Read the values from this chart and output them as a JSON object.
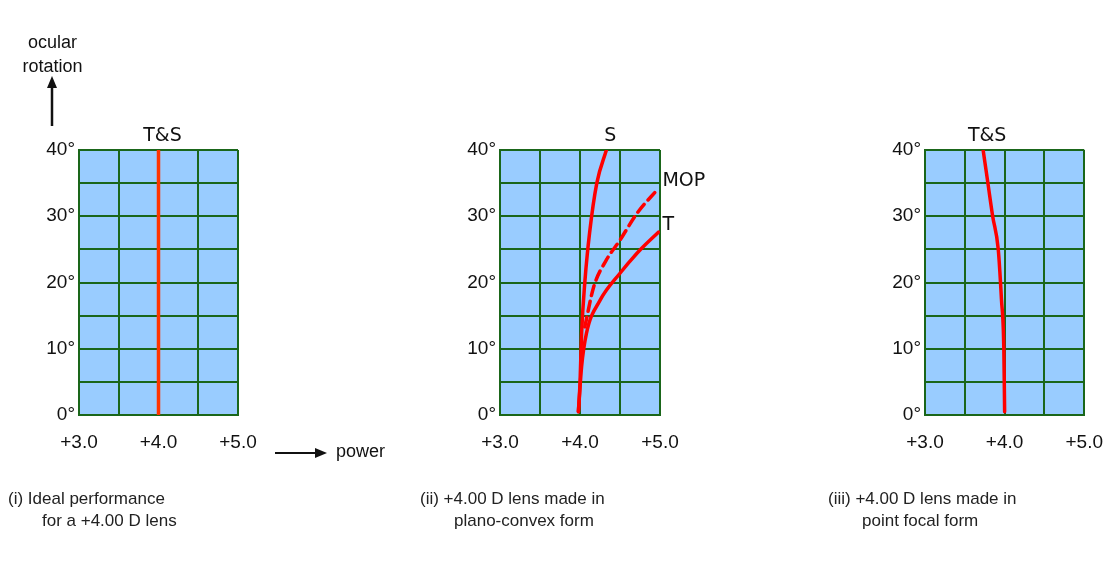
{
  "chart_data": [
    {
      "type": "line",
      "xlabel": "power",
      "ylabel": "ocular rotation",
      "xlim": [
        3,
        5
      ],
      "ylim": [
        0,
        40
      ],
      "xticks": [
        {
          "value": 3,
          "label": "+3.0"
        },
        {
          "value": 3.5,
          "label": null
        },
        {
          "value": 4,
          "label": "+4.0"
        },
        {
          "value": 4.5,
          "label": null
        },
        {
          "value": 5,
          "label": "+5.0"
        }
      ],
      "yticks": [
        {
          "value": 0,
          "label": "0°"
        },
        {
          "value": 5,
          "label": null
        },
        {
          "value": 10,
          "label": "10°"
        },
        {
          "value": 15,
          "label": null
        },
        {
          "value": 20,
          "label": "20°"
        },
        {
          "value": 25,
          "label": null
        },
        {
          "value": 30,
          "label": "30°"
        },
        {
          "value": 35,
          "label": null
        },
        {
          "value": 40,
          "label": "40°"
        }
      ],
      "grid": true,
      "marker": "none",
      "series": [
        {
          "name": "T&S",
          "color": "#ff3300",
          "x": [
            4,
            4
          ],
          "values": [
            0,
            40
          ]
        }
      ],
      "annotations": [
        "(i) Ideal performance for a +4.00 D lens"
      ]
    },
    {
      "type": "line",
      "xlim": [
        3,
        5
      ],
      "ylim": [
        0,
        40
      ],
      "xticks": [
        {
          "value": 3,
          "label": "+3.0"
        },
        {
          "value": 3.5,
          "label": null
        },
        {
          "value": 4,
          "label": "+4.0"
        },
        {
          "value": 4.5,
          "label": null
        },
        {
          "value": 5,
          "label": "+5.0"
        }
      ],
      "yticks": [
        {
          "value": 0,
          "label": "0°"
        },
        {
          "value": 5,
          "label": null
        },
        {
          "value": 10,
          "label": "10°"
        },
        {
          "value": 15,
          "label": null
        },
        {
          "value": 20,
          "label": "20°"
        },
        {
          "value": 25,
          "label": null
        },
        {
          "value": 30,
          "label": "30°"
        },
        {
          "value": 35,
          "label": null
        },
        {
          "value": 40,
          "label": "40°"
        }
      ],
      "grid": true,
      "marker": "none",
      "series": [
        {
          "name": "S",
          "color": "#ff0000",
          "x": [
            3.98,
            4.0,
            4.02,
            4.06,
            4.12,
            4.21,
            4.33
          ],
          "values": [
            0.5,
            4.8,
            12.3,
            20,
            27.5,
            35,
            40
          ]
        },
        {
          "name": "MOP",
          "color": "#ff0000",
          "line_style": "dashed",
          "x": [
            4.06,
            4.17,
            4.33,
            4.5,
            4.71,
            4.98
          ],
          "values": [
            13.3,
            19.3,
            23.4,
            26.4,
            30.4,
            34.2
          ]
        },
        {
          "name": "T",
          "color": "#ff0000",
          "x": [
            3.98,
            4.02,
            4.08,
            4.25,
            4.5,
            4.75,
            4.98
          ],
          "values": [
            0.5,
            7.3,
            12.3,
            17.3,
            21.4,
            24.9,
            27.6
          ]
        }
      ],
      "annotations": [
        "(ii) +4.00 D lens made in plano-convex form"
      ]
    },
    {
      "type": "line",
      "xlim": [
        3,
        5
      ],
      "ylim": [
        0,
        40
      ],
      "xticks": [
        {
          "value": 3,
          "label": "+3.0"
        },
        {
          "value": 3.5,
          "label": null
        },
        {
          "value": 4,
          "label": "+4.0"
        },
        {
          "value": 4.5,
          "label": null
        },
        {
          "value": 5,
          "label": "+5.0"
        }
      ],
      "yticks": [
        {
          "value": 0,
          "label": "0°"
        },
        {
          "value": 5,
          "label": null
        },
        {
          "value": 10,
          "label": "10°"
        },
        {
          "value": 15,
          "label": null
        },
        {
          "value": 20,
          "label": "20°"
        },
        {
          "value": 25,
          "label": null
        },
        {
          "value": 30,
          "label": "30°"
        },
        {
          "value": 35,
          "label": null
        },
        {
          "value": 40,
          "label": "40°"
        }
      ],
      "grid": true,
      "marker": "none",
      "series": [
        {
          "name": "T&S",
          "color": "#ff0000",
          "x": [
            4.0,
            3.99,
            3.96,
            3.92,
            3.85,
            3.79,
            3.73
          ],
          "values": [
            0.5,
            10,
            17.5,
            25,
            30,
            35,
            40
          ]
        }
      ],
      "annotations": [
        "(iii) +4.00 D lens made in point focal form"
      ]
    }
  ]
}
